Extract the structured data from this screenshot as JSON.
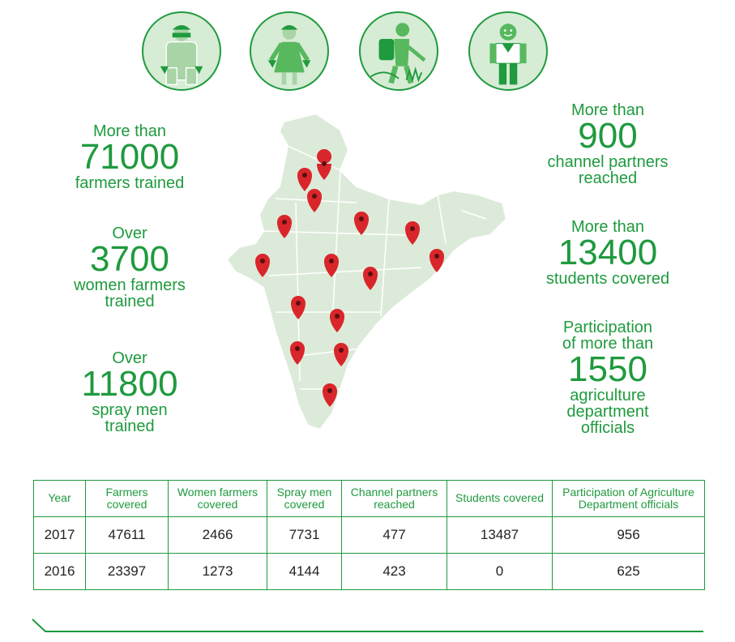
{
  "icons": [
    {
      "name": "farmer-icon"
    },
    {
      "name": "woman-farmer-icon"
    },
    {
      "name": "spray-man-icon"
    },
    {
      "name": "student-icon"
    }
  ],
  "stats_left": [
    {
      "pre": "More than",
      "num": "71000",
      "post": "farmers trained"
    },
    {
      "pre": "Over",
      "num": "3700",
      "post1": "women farmers",
      "post2": "trained"
    },
    {
      "pre": "Over",
      "num": "11800",
      "post1": "spray men",
      "post2": "trained"
    }
  ],
  "stats_right": [
    {
      "pre": "More than",
      "num": "900",
      "post1": "channel partners",
      "post2": "reached"
    },
    {
      "pre": "More than",
      "num": "13400",
      "post": "students covered"
    },
    {
      "pre1": "Participation",
      "pre2": "of more than",
      "num": "1550",
      "post1": "agriculture",
      "post2": "department",
      "post3": "officials"
    }
  ],
  "table": {
    "headers": [
      "Year",
      "Farmers covered",
      "Women farmers covered",
      "Spray men covered",
      "Channel partners reached",
      "Students covered",
      "Participation of Agriculture Department officials"
    ],
    "rows": [
      [
        "2017",
        "47611",
        "2466",
        "7731",
        "477",
        "13487",
        "956"
      ],
      [
        "2016",
        "23397",
        "1273",
        "4144",
        "423",
        "0",
        "625"
      ]
    ]
  },
  "colors": {
    "accent": "#1f9a3e",
    "light": "#d6ecd5",
    "pin": "#d9262b"
  }
}
